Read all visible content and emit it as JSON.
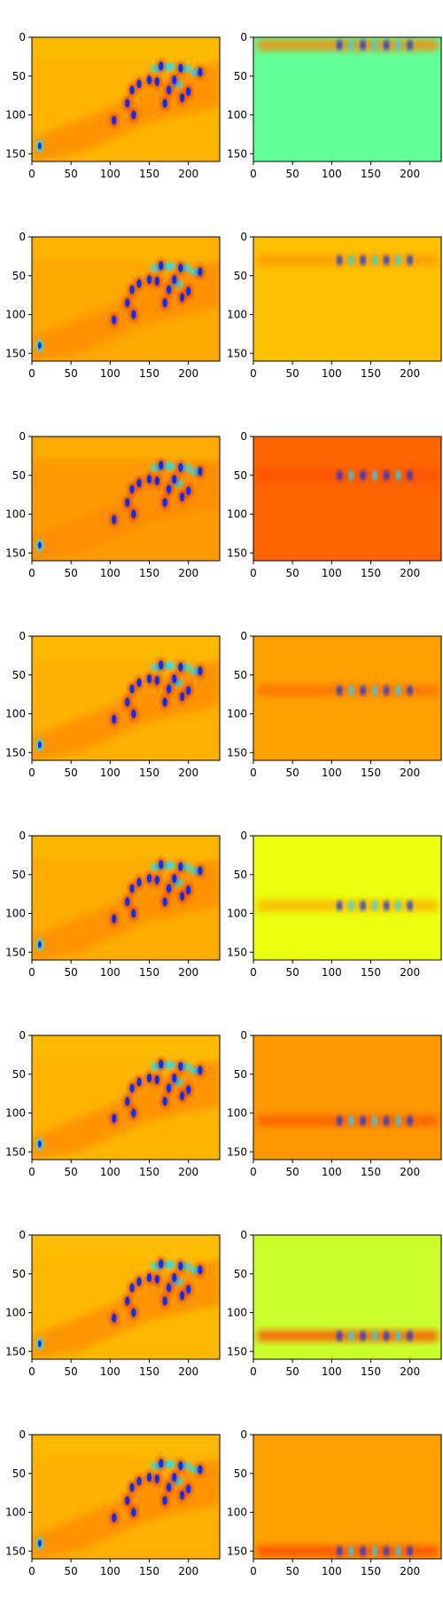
{
  "chart_data": {
    "type": "heatmap",
    "layout": "8 rows x 2 columns of image panels",
    "colormap": "jet",
    "axes": {
      "xlim": [
        0,
        240
      ],
      "ylim": [
        160,
        0
      ],
      "xticks": [
        0,
        50,
        100,
        150,
        200
      ],
      "yticks": [
        0,
        50,
        100,
        150
      ],
      "grid": false
    },
    "colors": {
      "base_orange": "#ffa000",
      "base_yellow": "#ffd200",
      "base_green": "#62ff96",
      "base_red_orange": "#ff6400",
      "base_lemon": "#e9ff0e",
      "base_lime": "#caff2c",
      "blue_spot": "#0030ff",
      "cyan_spot": "#1ee0ff",
      "red_spot": "#e02000"
    },
    "panels": [
      {
        "row": 0,
        "col": 0,
        "kind": "feature",
        "base": "#ffb400"
      },
      {
        "row": 0,
        "col": 1,
        "kind": "band",
        "base": "#62ff96",
        "band_y": 10,
        "band_color": "#ff8000"
      },
      {
        "row": 1,
        "col": 0,
        "kind": "feature",
        "base": "#ffa800"
      },
      {
        "row": 1,
        "col": 1,
        "kind": "band",
        "base": "#ffc000",
        "band_y": 30,
        "band_color": "#ff9a00"
      },
      {
        "row": 2,
        "col": 0,
        "kind": "feature",
        "base": "#ff9a00"
      },
      {
        "row": 2,
        "col": 1,
        "kind": "band",
        "base": "#ff6400",
        "band_y": 50,
        "band_color": "#ff5000"
      },
      {
        "row": 3,
        "col": 0,
        "kind": "feature",
        "base": "#ffb000"
      },
      {
        "row": 3,
        "col": 1,
        "kind": "band",
        "base": "#ffa000",
        "band_y": 70,
        "band_color": "#ff7000"
      },
      {
        "row": 4,
        "col": 0,
        "kind": "feature",
        "base": "#ffac00"
      },
      {
        "row": 4,
        "col": 1,
        "kind": "band",
        "base": "#e9ff0e",
        "band_y": 90,
        "band_color": "#ffb000"
      },
      {
        "row": 5,
        "col": 0,
        "kind": "feature",
        "base": "#ffb400"
      },
      {
        "row": 5,
        "col": 1,
        "kind": "band",
        "base": "#ff9800",
        "band_y": 110,
        "band_color": "#ff5a00"
      },
      {
        "row": 6,
        "col": 0,
        "kind": "feature",
        "base": "#ffb800"
      },
      {
        "row": 6,
        "col": 1,
        "kind": "band",
        "base": "#caff2c",
        "band_y": 130,
        "band_color": "#ff5000"
      },
      {
        "row": 7,
        "col": 0,
        "kind": "feature",
        "base": "#ffb000"
      },
      {
        "row": 7,
        "col": 1,
        "kind": "band",
        "base": "#ffa000",
        "band_y": 150,
        "band_color": "#ff4a00"
      }
    ]
  }
}
